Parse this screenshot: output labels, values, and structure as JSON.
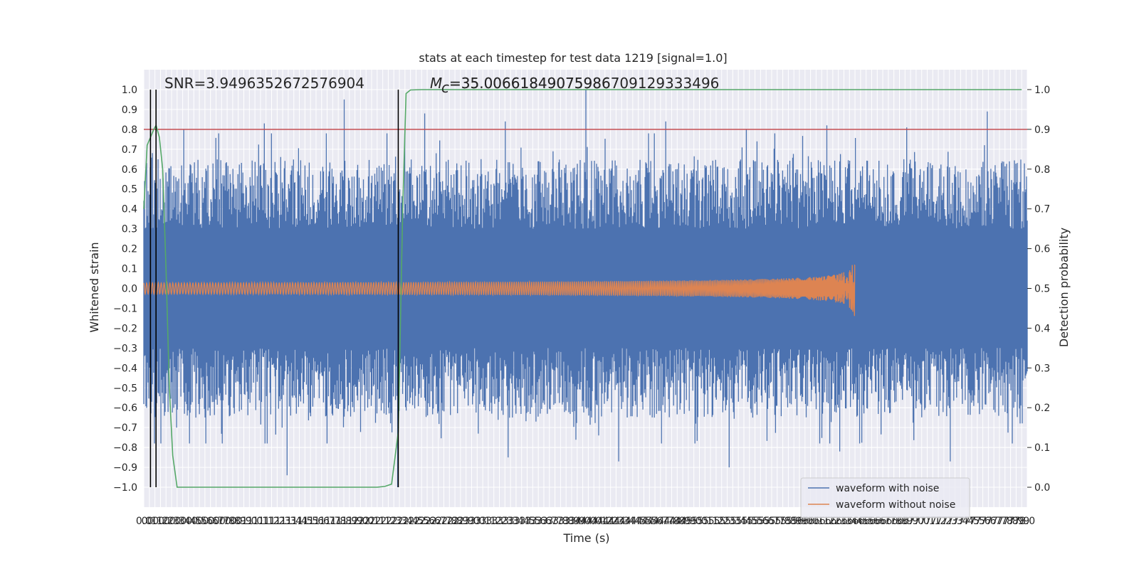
{
  "chart_data": {
    "type": "line",
    "title": "stats at each timestep for test data 1219 [signal=1.0]",
    "xlabel": "Time (s)",
    "ylabel": "Whitened strain",
    "ylabel_right": "Detection probability",
    "xlim": [
      0.0,
      7.95
    ],
    "ylim": [
      -1.1,
      1.1
    ],
    "ylim_right": [
      -0.05,
      1.05
    ],
    "x_tick_step": 0.05,
    "y_ticks": [
      -1.0,
      -0.9,
      -0.8,
      -0.7,
      -0.6,
      -0.5,
      -0.4,
      -0.3,
      -0.2,
      -0.1,
      0.0,
      0.1,
      0.2,
      0.3,
      0.4,
      0.5,
      0.6,
      0.7,
      0.8,
      0.9,
      1.0
    ],
    "y_ticks_right": [
      0.0,
      0.1,
      0.2,
      0.3,
      0.4,
      0.5,
      0.6,
      0.7,
      0.8,
      0.9,
      1.0
    ],
    "grid": true,
    "legend_position": "lower-right",
    "annotations": {
      "snr": "SNR=3.9496352672576904",
      "mc_prefix": "M",
      "mc_sub": "c",
      "mc_value_a": "=35.00661849075986",
      "mc_value_b": "=35.00661849075986709129333496"
    },
    "threshold_line": {
      "axis": "right",
      "value": 0.9,
      "color": "#c44e52"
    },
    "vertical_markers": [
      0.06,
      0.11,
      2.29
    ],
    "series": [
      {
        "name": "waveform with noise",
        "color": "#4c72b0",
        "kind": "noise",
        "x_range": [
          0.0,
          7.95
        ],
        "core_abs": 0.25,
        "max_peaks": [
          0.8,
          0.83,
          0.95,
          0.88,
          0.84,
          1.0,
          0.84,
          0.8,
          0.82,
          0.81,
          0.89
        ],
        "min_peaks": [
          -0.7,
          -0.94,
          -1.0,
          -0.85,
          -0.87,
          -0.9,
          -0.82,
          -0.87
        ]
      },
      {
        "name": "waveform without noise",
        "color": "#dd8452",
        "kind": "chirp",
        "x_range": [
          0.0,
          6.4
        ],
        "merger_time": 6.4,
        "peak_amplitude": 0.21
      },
      {
        "name": "detection probability",
        "axis": "right",
        "color": "#55a868",
        "kind": "line",
        "x": [
          0.0,
          0.03,
          0.06,
          0.09,
          0.11,
          0.14,
          0.17,
          0.2,
          0.23,
          0.26,
          0.3,
          0.4,
          0.8,
          1.2,
          1.6,
          2.0,
          2.1,
          2.17,
          2.23,
          2.29,
          2.33,
          2.36,
          2.4,
          2.5,
          3.0,
          4.0,
          5.0,
          6.0,
          7.0,
          7.9
        ],
        "y": [
          0.7,
          0.86,
          0.88,
          0.9,
          0.91,
          0.88,
          0.8,
          0.55,
          0.25,
          0.08,
          0.0,
          0.0,
          0.0,
          0.0,
          0.0,
          0.0,
          0.0,
          0.002,
          0.008,
          0.14,
          0.7,
          0.99,
          0.999,
          1.0,
          1.0,
          1.0,
          1.0,
          1.0,
          1.0,
          1.0
        ]
      }
    ]
  }
}
